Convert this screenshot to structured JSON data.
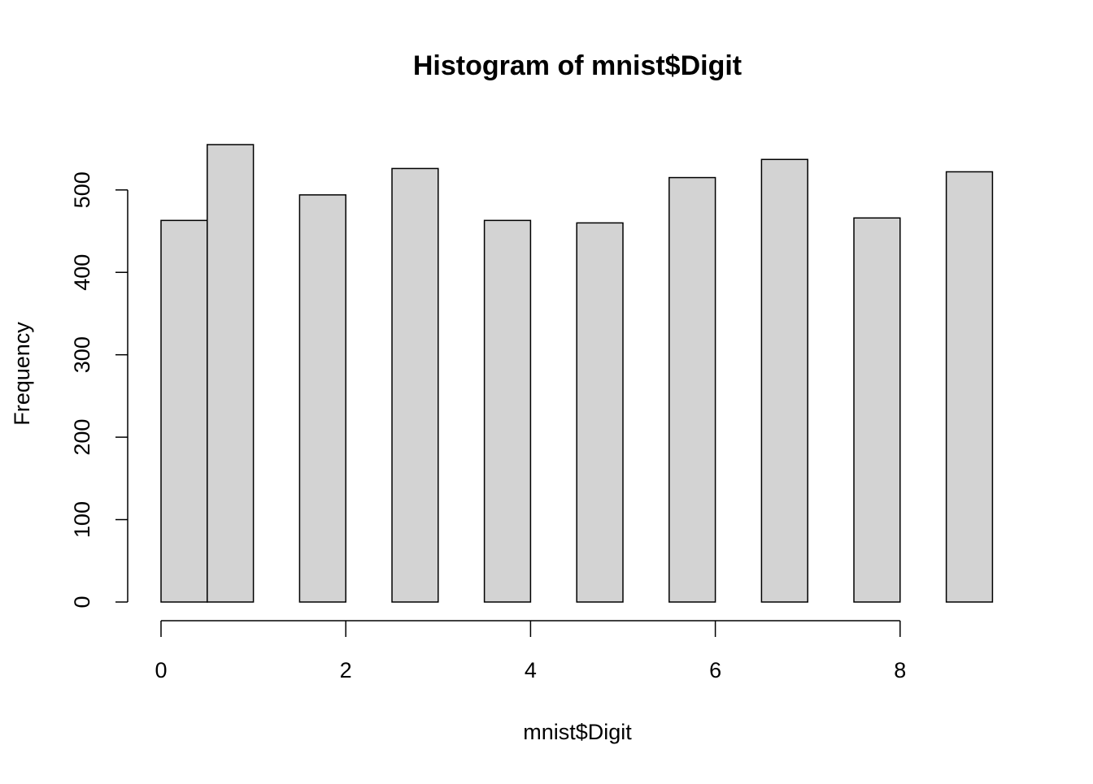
{
  "chart_data": {
    "type": "histogram",
    "title": "Histogram of mnist$Digit",
    "x_label": "mnist$Digit",
    "y_label": "Frequency",
    "bins": [
      0,
      0.5,
      1,
      1.5,
      2,
      2.5,
      3,
      3.5,
      4,
      4.5,
      5,
      5.5,
      6,
      6.5,
      7,
      7.5,
      8,
      8.5,
      9
    ],
    "values": [
      463,
      555,
      0,
      494,
      0,
      526,
      0,
      463,
      0,
      460,
      0,
      515,
      0,
      537,
      0,
      466,
      0,
      522
    ],
    "color": "#d3d3d3",
    "xlim": [
      0,
      9
    ],
    "xticks": [
      0,
      2,
      4,
      6,
      8
    ],
    "ylim": [
      0,
      555
    ],
    "yticks": [
      0,
      100,
      200,
      300,
      400,
      500
    ]
  }
}
